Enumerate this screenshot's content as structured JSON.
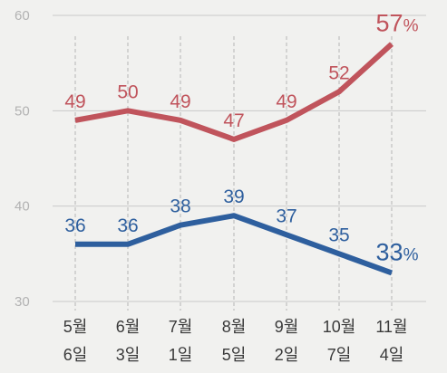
{
  "chart_data": {
    "type": "line",
    "title": "",
    "xlabel": "",
    "ylabel": "",
    "ylim": [
      30,
      60
    ],
    "yticks": [
      30,
      40,
      50,
      60
    ],
    "grid": "horizontal",
    "categories": [
      [
        "5월",
        "6일"
      ],
      [
        "6월",
        "3일"
      ],
      [
        "7월",
        "1일"
      ],
      [
        "8월",
        "5일"
      ],
      [
        "9월",
        "2일"
      ],
      [
        "10월",
        "7일"
      ],
      [
        "11월",
        "4일"
      ]
    ],
    "series": [
      {
        "color": "#c0545c",
        "values": [
          49,
          50,
          49,
          47,
          49,
          52,
          57
        ]
      },
      {
        "color": "#2e5f9e",
        "values": [
          36,
          36,
          38,
          39,
          37,
          35,
          33
        ]
      }
    ],
    "last_label_suffix": "%"
  }
}
